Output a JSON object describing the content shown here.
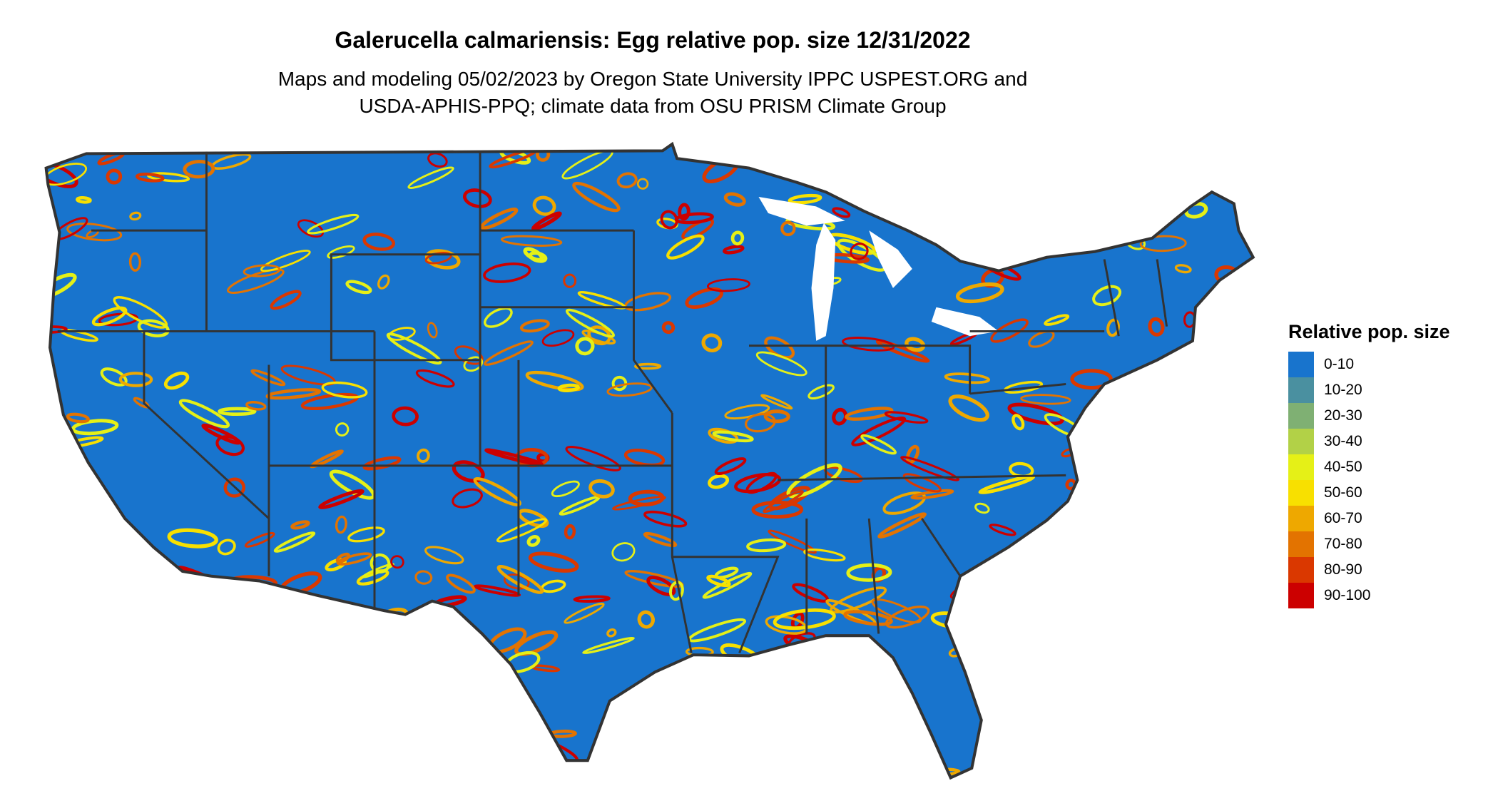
{
  "title": "Galerucella calmariensis: Egg relative pop. size 12/31/2022",
  "subtitle_lines": [
    "Maps and modeling 05/02/2023 by Oregon State University IPPC USPEST.ORG and",
    "USDA-APHIS-PPQ; climate data from OSU PRISM Climate Group"
  ],
  "legend": {
    "title": "Relative pop. size",
    "items": [
      {
        "label": "0-10",
        "color": "#1874CD"
      },
      {
        "label": "10-20",
        "color": "#4A90A0"
      },
      {
        "label": "20-30",
        "color": "#7FB073"
      },
      {
        "label": "30-40",
        "color": "#B2D147"
      },
      {
        "label": "40-50",
        "color": "#E5F017"
      },
      {
        "label": "50-60",
        "color": "#F8E000"
      },
      {
        "label": "60-70",
        "color": "#EEA800"
      },
      {
        "label": "70-80",
        "color": "#E37300"
      },
      {
        "label": "80-90",
        "color": "#DA3800"
      },
      {
        "label": "90-100",
        "color": "#CC0000"
      }
    ]
  },
  "map": {
    "base_color": "#1874CD",
    "border_color": "#333333"
  }
}
